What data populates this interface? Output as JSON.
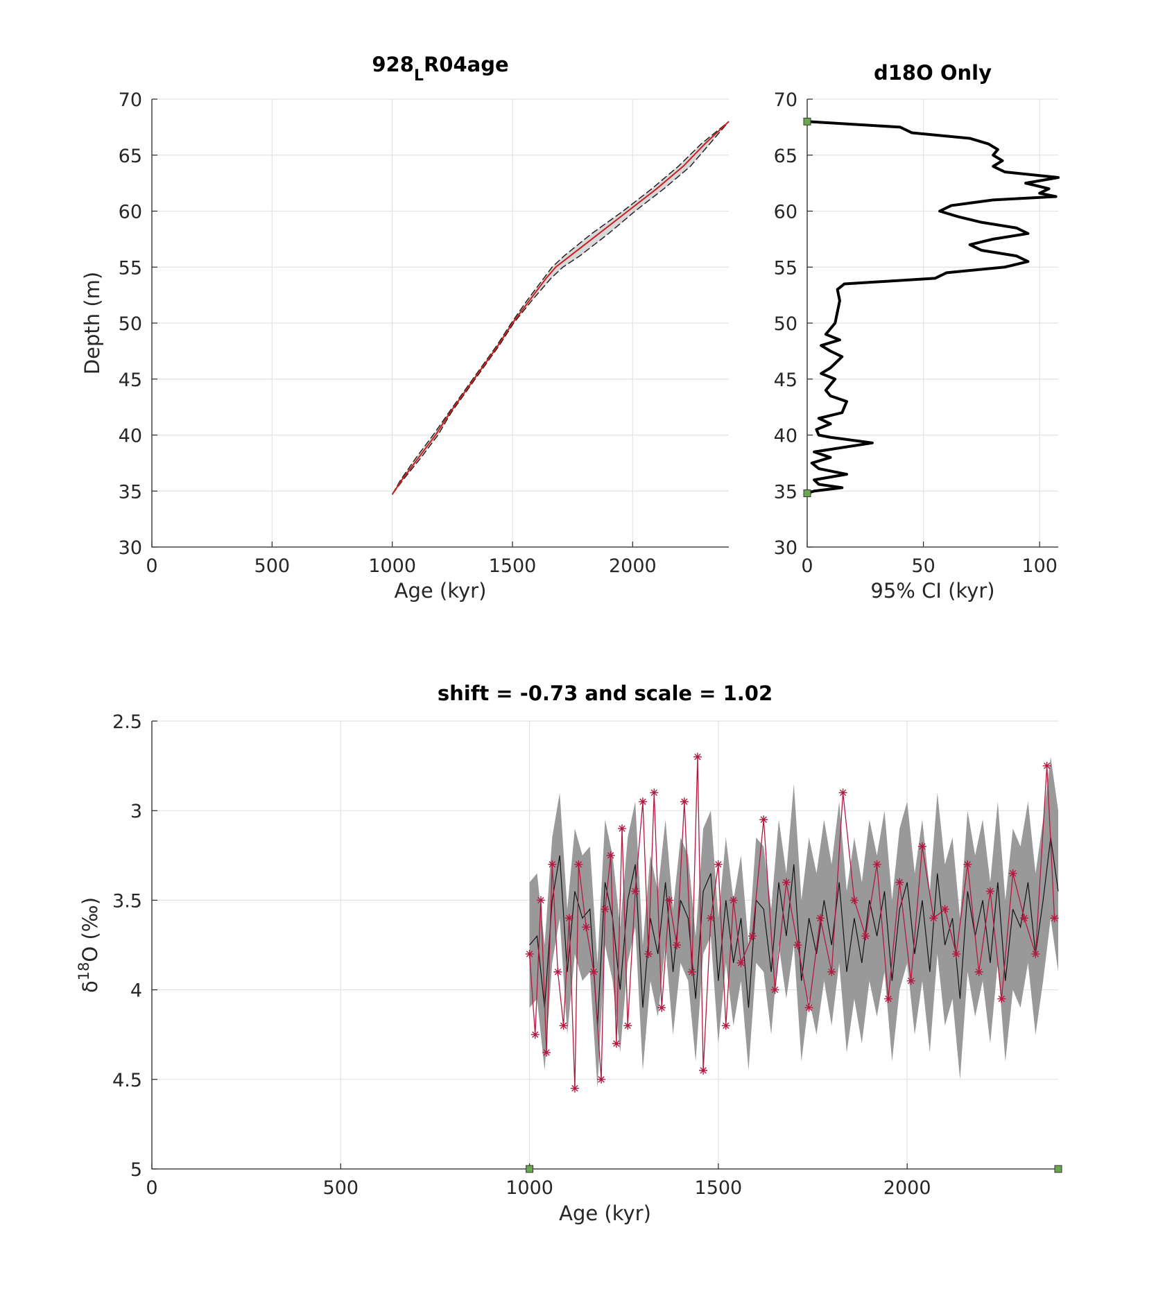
{
  "chart_data": [
    {
      "type": "area",
      "title_parts": [
        "928",
        "L",
        "R04age"
      ],
      "xlabel": "Age (kyr)",
      "ylabel": "Depth (m)",
      "xlim": [
        0,
        2400
      ],
      "ylim": [
        30,
        70
      ],
      "xticks": [
        0,
        500,
        1000,
        1500,
        2000
      ],
      "yticks": [
        30,
        35,
        40,
        45,
        50,
        55,
        60,
        65,
        70
      ],
      "grid": true,
      "depth": [
        34.7,
        36,
        38,
        40,
        42,
        45,
        48,
        50,
        52,
        54,
        55,
        56,
        58,
        60,
        62,
        64,
        66,
        68
      ],
      "age_median": [
        1000,
        1040,
        1110,
        1180,
        1240,
        1340,
        1440,
        1500,
        1570,
        1640,
        1680,
        1740,
        1860,
        1980,
        2100,
        2210,
        2300,
        2400
      ],
      "age_low": [
        1000,
        1035,
        1100,
        1170,
        1235,
        1335,
        1435,
        1495,
        1560,
        1630,
        1665,
        1715,
        1830,
        1960,
        2080,
        2190,
        2285,
        2400
      ],
      "age_high": [
        1000,
        1045,
        1120,
        1190,
        1245,
        1345,
        1445,
        1505,
        1580,
        1660,
        1710,
        1780,
        1900,
        2010,
        2130,
        2240,
        2320,
        2400
      ],
      "color": "#cc1f1f",
      "band_color": "#c8c8c8"
    },
    {
      "type": "line",
      "title_parts": [
        "d18O Only"
      ],
      "xlabel": "95% CI (kyr)",
      "xlim": [
        0,
        108
      ],
      "ylim": [
        30,
        70
      ],
      "xticks": [
        0,
        50,
        100
      ],
      "yticks": [
        30,
        35,
        40,
        45,
        50,
        55,
        60,
        65,
        70
      ],
      "grid": true,
      "depth": [
        34.8,
        35,
        35.3,
        35.6,
        36,
        36.5,
        37,
        37.5,
        38,
        38.5,
        39.3,
        39.8,
        40,
        40.5,
        41,
        41.5,
        42,
        43,
        43.5,
        44,
        45,
        45.5,
        46,
        47,
        47.5,
        48,
        48.5,
        49,
        50,
        51,
        52,
        53,
        53.5,
        54,
        54.5,
        55,
        55.5,
        56,
        56.5,
        57,
        57.5,
        58,
        58.5,
        59,
        59.5,
        60,
        60.5,
        61,
        61.3,
        61.6,
        62,
        62.5,
        63,
        63.5,
        64,
        64.5,
        65,
        65.5,
        66,
        66.5,
        67,
        67.5,
        68
      ],
      "ci": [
        0,
        3,
        15,
        5,
        3,
        17,
        5,
        2,
        10,
        3,
        28,
        10,
        5,
        4,
        10,
        5,
        15,
        17,
        10,
        8,
        12,
        6,
        10,
        15,
        10,
        6,
        14,
        8,
        12,
        13,
        14,
        13,
        16,
        55,
        60,
        85,
        95,
        90,
        75,
        70,
        80,
        95,
        90,
        75,
        65,
        57,
        62,
        80,
        107,
        100,
        104,
        94,
        108,
        85,
        80,
        84,
        80,
        82,
        78,
        70,
        45,
        40,
        0
      ],
      "color": "#000000",
      "markers": {
        "x": [
          0,
          0
        ],
        "y": [
          68,
          34.8
        ],
        "color": "#6aa84f"
      }
    },
    {
      "type": "scatter",
      "title": "shift = -0.73 and scale = 1.02",
      "xlabel": "Age (kyr)",
      "ylabel_parts": [
        "δ",
        "18",
        "O (‰)"
      ],
      "xlim": [
        0,
        2400
      ],
      "ylim": [
        2.5,
        5
      ],
      "y_reverse": true,
      "xticks": [
        0,
        500,
        1000,
        1500,
        2000
      ],
      "yticks": [
        2.5,
        3,
        3.5,
        4,
        4.5,
        5
      ],
      "grid": true,
      "age": [
        1000,
        1020,
        1040,
        1060,
        1080,
        1100,
        1120,
        1140,
        1160,
        1180,
        1200,
        1220,
        1240,
        1260,
        1280,
        1300,
        1320,
        1340,
        1360,
        1380,
        1400,
        1420,
        1440,
        1460,
        1480,
        1500,
        1520,
        1540,
        1560,
        1580,
        1600,
        1620,
        1640,
        1660,
        1680,
        1700,
        1720,
        1740,
        1760,
        1780,
        1800,
        1820,
        1840,
        1860,
        1880,
        1900,
        1920,
        1940,
        1960,
        1980,
        2000,
        2020,
        2040,
        2060,
        2080,
        2100,
        2120,
        2140,
        2160,
        2180,
        2200,
        2220,
        2240,
        2260,
        2280,
        2300,
        2320,
        2340,
        2360,
        2380,
        2400
      ],
      "median": [
        3.75,
        3.7,
        4.1,
        3.5,
        3.25,
        3.9,
        3.45,
        3.6,
        3.55,
        4.2,
        3.4,
        3.6,
        4.0,
        3.5,
        3.3,
        4.1,
        3.6,
        3.8,
        3.4,
        3.9,
        3.5,
        3.6,
        4.05,
        3.45,
        3.35,
        3.95,
        3.5,
        3.85,
        3.6,
        4.1,
        3.5,
        3.55,
        3.9,
        3.4,
        3.7,
        3.3,
        3.95,
        3.6,
        3.8,
        3.5,
        3.75,
        3.4,
        3.9,
        3.6,
        3.85,
        3.5,
        3.7,
        3.45,
        3.95,
        3.55,
        3.4,
        3.8,
        3.5,
        3.9,
        3.35,
        3.75,
        3.6,
        4.05,
        3.45,
        3.7,
        3.5,
        3.85,
        3.4,
        3.95,
        3.55,
        3.65,
        3.4,
        3.8,
        3.5,
        3.15,
        3.45
      ],
      "lower": [
        3.4,
        3.35,
        3.75,
        3.15,
        2.9,
        3.55,
        3.1,
        3.25,
        3.2,
        3.85,
        3.05,
        3.25,
        3.65,
        3.15,
        2.95,
        3.75,
        3.25,
        3.45,
        3.05,
        3.55,
        3.15,
        3.25,
        3.7,
        3.1,
        3.0,
        3.6,
        3.15,
        3.5,
        3.25,
        3.75,
        3.15,
        3.2,
        3.55,
        3.05,
        3.35,
        2.85,
        3.5,
        3.15,
        3.35,
        3.05,
        3.3,
        2.95,
        3.45,
        3.15,
        3.4,
        3.05,
        3.25,
        3.0,
        3.5,
        3.1,
        2.95,
        3.35,
        3.05,
        3.45,
        2.9,
        3.3,
        3.15,
        3.6,
        3.0,
        3.25,
        3.05,
        3.4,
        2.95,
        3.5,
        3.1,
        3.2,
        2.95,
        3.35,
        3.05,
        2.7,
        3.0
      ],
      "upper": [
        4.1,
        4.05,
        4.45,
        3.85,
        3.6,
        4.25,
        3.8,
        3.95,
        3.9,
        4.55,
        3.75,
        3.95,
        4.35,
        3.85,
        3.65,
        4.45,
        3.95,
        4.15,
        3.75,
        4.25,
        3.85,
        3.95,
        4.4,
        3.8,
        3.7,
        4.3,
        3.85,
        4.2,
        3.95,
        4.45,
        3.85,
        3.9,
        4.25,
        3.75,
        4.05,
        3.75,
        4.4,
        4.05,
        4.25,
        3.95,
        4.2,
        3.85,
        4.35,
        4.05,
        4.3,
        3.95,
        4.15,
        3.9,
        4.4,
        4.0,
        3.85,
        4.25,
        3.95,
        4.35,
        3.8,
        4.2,
        4.05,
        4.5,
        3.9,
        4.15,
        3.95,
        4.3,
        3.85,
        4.4,
        4.0,
        4.1,
        3.85,
        4.25,
        3.95,
        3.6,
        3.9
      ],
      "band_color": "#999999",
      "line_color": "#111111",
      "points": {
        "color": "#b5173f",
        "age": [
          1000,
          1015,
          1030,
          1045,
          1060,
          1075,
          1090,
          1105,
          1120,
          1130,
          1150,
          1170,
          1190,
          1200,
          1215,
          1230,
          1245,
          1260,
          1280,
          1300,
          1315,
          1330,
          1350,
          1370,
          1390,
          1410,
          1430,
          1445,
          1460,
          1480,
          1500,
          1520,
          1540,
          1560,
          1590,
          1620,
          1650,
          1680,
          1710,
          1740,
          1770,
          1800,
          1830,
          1860,
          1890,
          1920,
          1950,
          1980,
          2010,
          2040,
          2070,
          2100,
          2130,
          2160,
          2190,
          2220,
          2250,
          2280,
          2310,
          2340,
          2370,
          2390
        ],
        "values": [
          3.8,
          4.25,
          3.5,
          4.35,
          3.3,
          3.9,
          4.2,
          3.6,
          4.55,
          3.3,
          3.65,
          3.9,
          4.5,
          3.55,
          3.25,
          4.3,
          3.1,
          4.2,
          3.45,
          2.95,
          3.8,
          2.9,
          4.1,
          3.5,
          3.75,
          2.95,
          3.9,
          2.7,
          4.45,
          3.6,
          3.3,
          4.2,
          3.5,
          3.85,
          3.7,
          3.05,
          4.0,
          3.4,
          3.75,
          4.1,
          3.6,
          3.9,
          2.9,
          3.5,
          3.7,
          3.3,
          4.05,
          3.4,
          3.95,
          3.2,
          3.6,
          3.55,
          3.8,
          3.3,
          3.9,
          3.45,
          4.05,
          3.35,
          3.6,
          3.8,
          2.75,
          3.6
        ]
      },
      "markers": {
        "x": [
          1000,
          2400
        ],
        "y": [
          5,
          5
        ],
        "color": "#6aa84f"
      }
    }
  ]
}
